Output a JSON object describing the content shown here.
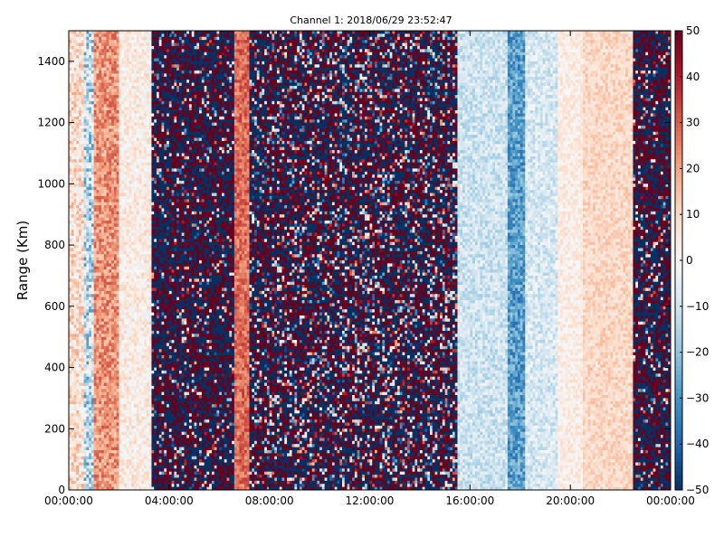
{
  "chart_data": {
    "type": "heatmap",
    "title": "Channel 1: 2018/06/29 23:52:47",
    "xlabel": "",
    "ylabel": "Range (Km)",
    "x_ticks": [
      "00:00:00",
      "04:00:00",
      "08:00:00",
      "12:00:00",
      "16:00:00",
      "20:00:00",
      "00:00:00"
    ],
    "xlim_hours": [
      0,
      24
    ],
    "y_ticks": [
      0,
      200,
      400,
      600,
      800,
      1000,
      1200,
      1400
    ],
    "ylim": [
      0,
      1500
    ],
    "colorbar": {
      "colormap": "RdBu_r",
      "ticks": [
        -50,
        -40,
        -30,
        -20,
        -10,
        0,
        10,
        20,
        30,
        40,
        50
      ],
      "vmin": -50,
      "vmax": 50,
      "colors": [
        "#053061",
        "#2166ac",
        "#4393c3",
        "#92c5de",
        "#d1e5f0",
        "#f7f7f7",
        "#fddbc7",
        "#f4a582",
        "#d6604d",
        "#b2182b",
        "#67001f"
      ]
    },
    "grid": false,
    "regions": [
      {
        "start_h": 0.0,
        "end_h": 0.6,
        "mean": 8,
        "noise": 12
      },
      {
        "start_h": 0.6,
        "end_h": 1.0,
        "mean": -12,
        "noise": 18
      },
      {
        "start_h": 1.0,
        "end_h": 2.0,
        "mean": 22,
        "noise": 10
      },
      {
        "start_h": 2.0,
        "end_h": 3.3,
        "mean": 4,
        "noise": 8
      },
      {
        "start_h": 3.3,
        "end_h": 6.6,
        "mean": 0,
        "noise": 100
      },
      {
        "start_h": 6.6,
        "end_h": 7.2,
        "mean": 28,
        "noise": 8
      },
      {
        "start_h": 7.2,
        "end_h": 9.0,
        "mean": 0,
        "noise": 65
      },
      {
        "start_h": 9.0,
        "end_h": 15.5,
        "mean": 0,
        "noise": 55
      },
      {
        "start_h": 15.5,
        "end_h": 17.5,
        "mean": -10,
        "noise": 8
      },
      {
        "start_h": 17.5,
        "end_h": 18.2,
        "mean": -28,
        "noise": 10
      },
      {
        "start_h": 18.2,
        "end_h": 19.5,
        "mean": -8,
        "noise": 8
      },
      {
        "start_h": 19.5,
        "end_h": 20.5,
        "mean": 4,
        "noise": 6
      },
      {
        "start_h": 20.5,
        "end_h": 22.5,
        "mean": 10,
        "noise": 6
      },
      {
        "start_h": 22.5,
        "end_h": 24.0,
        "mean": 0,
        "noise": 100
      }
    ]
  }
}
